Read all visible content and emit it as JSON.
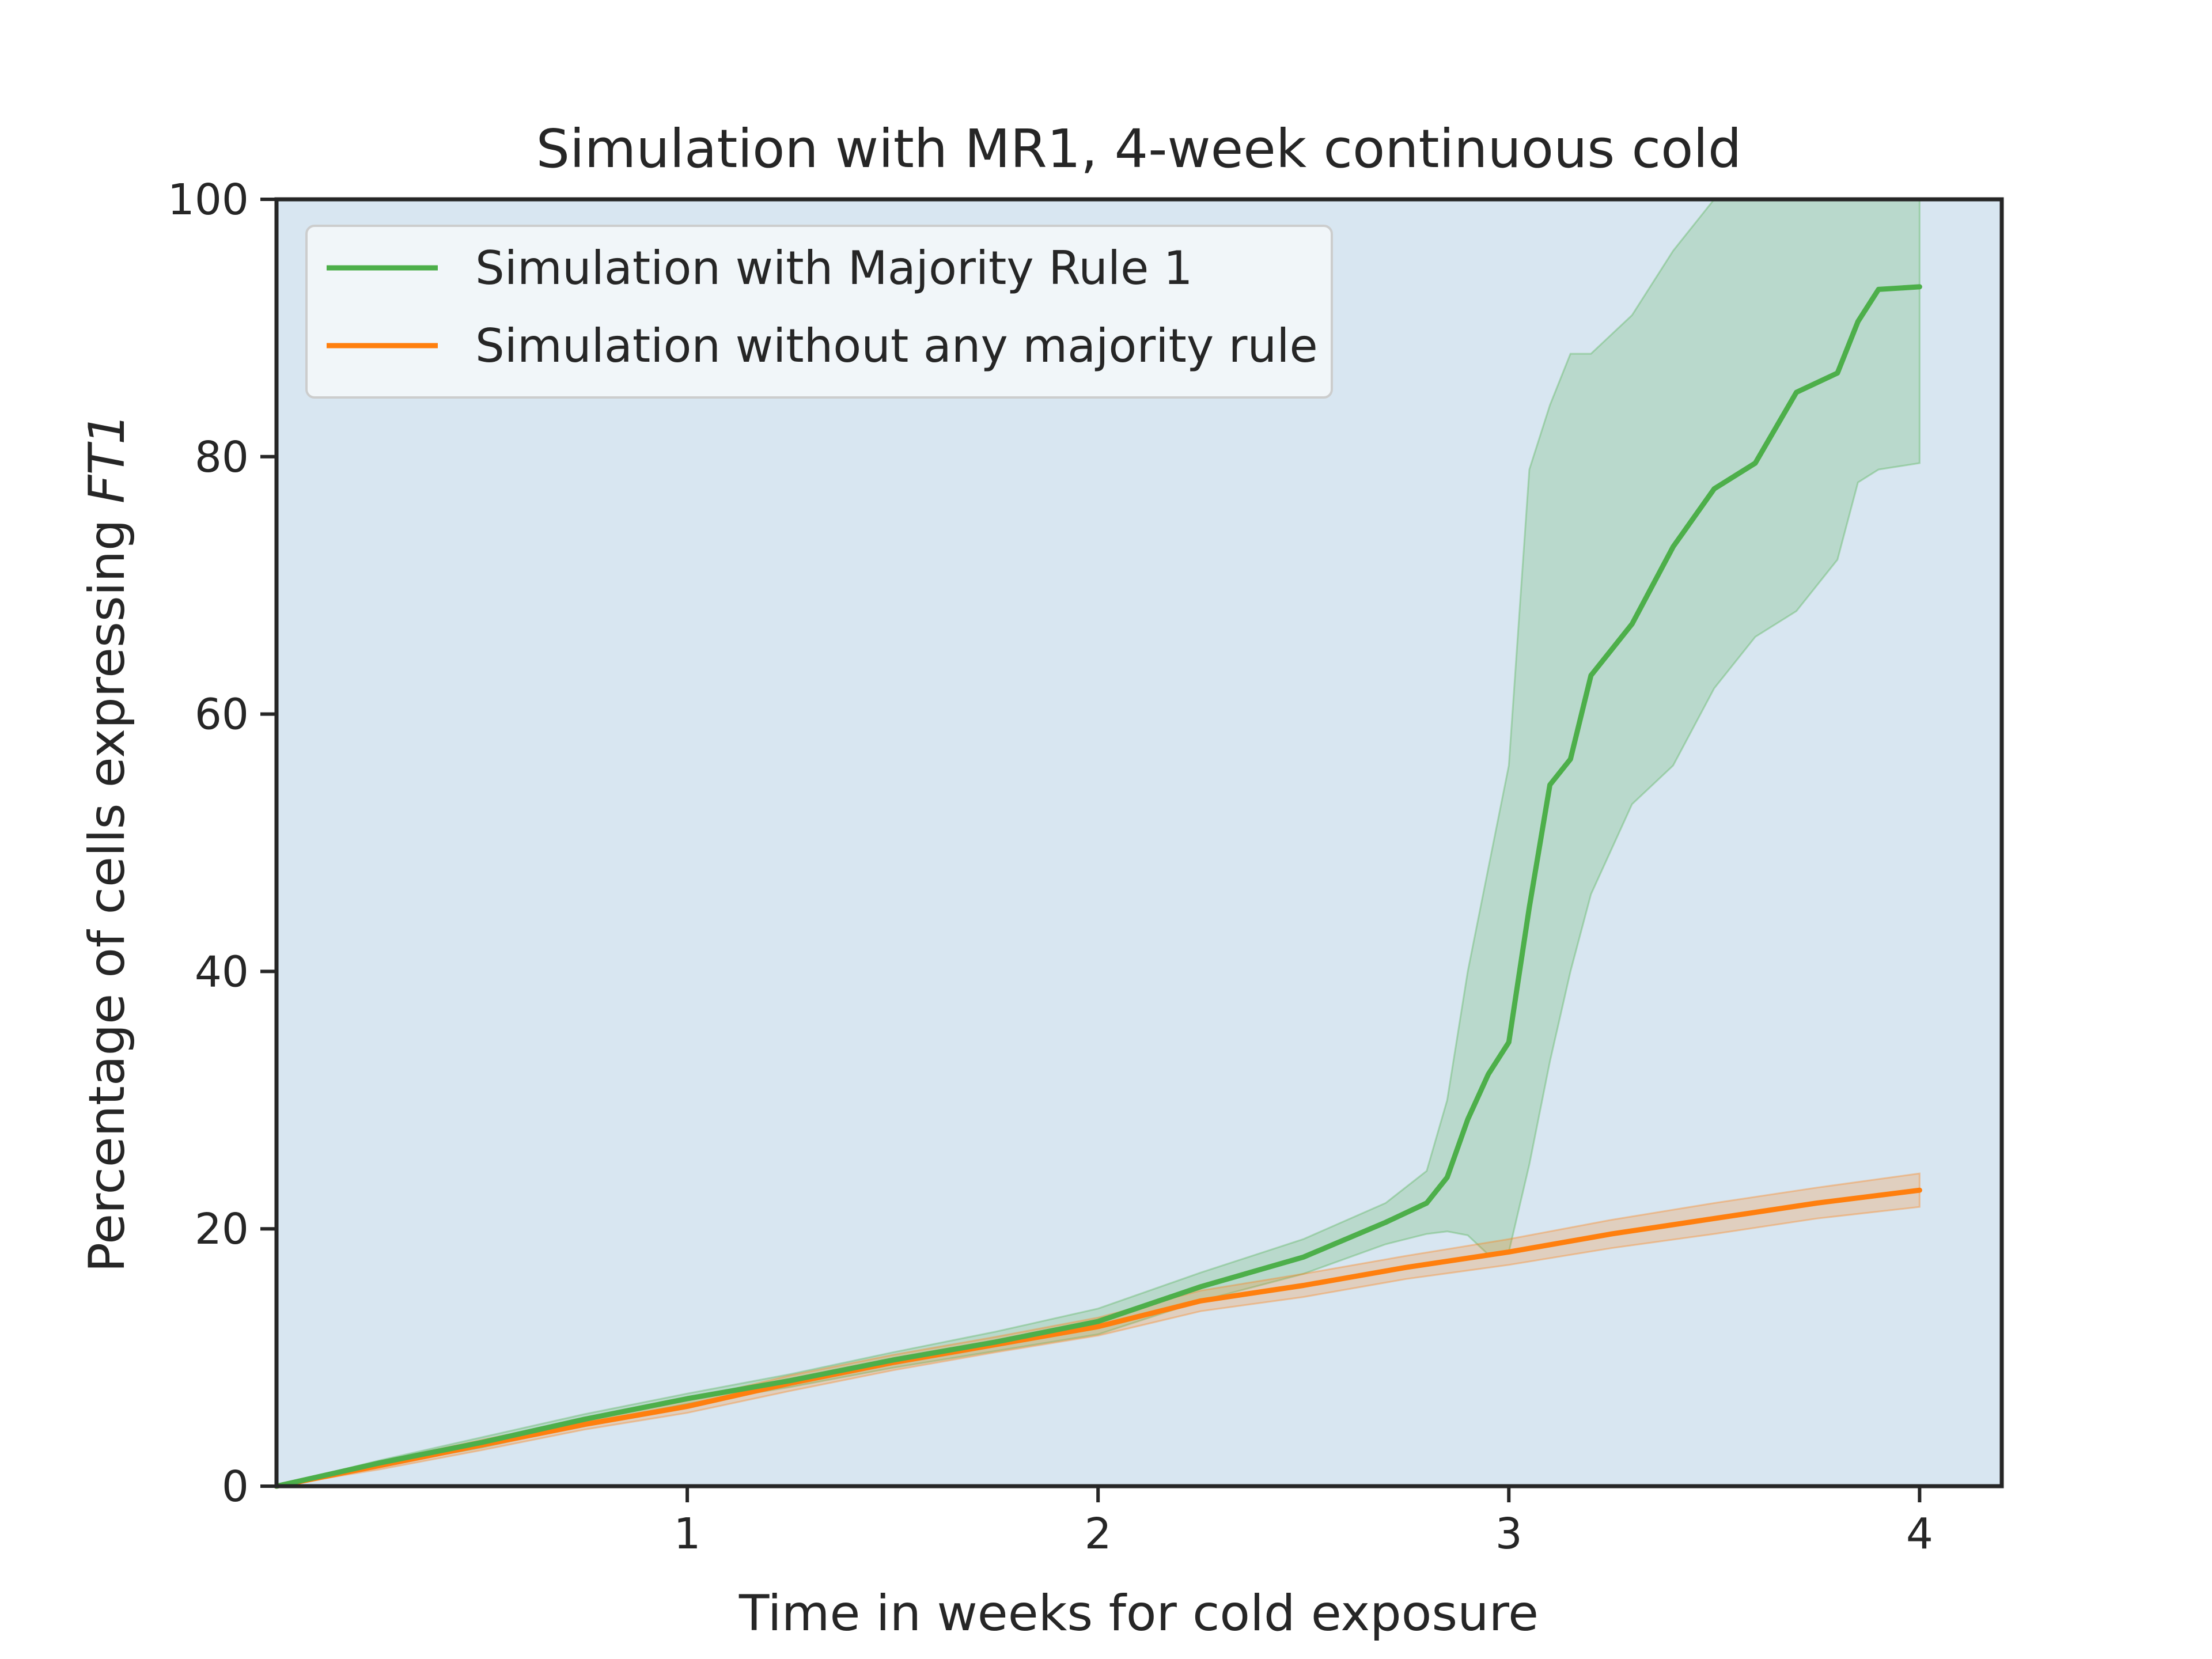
{
  "chart_data": {
    "type": "line",
    "title": "Simulation with MR1, 4-week continuous cold",
    "xlabel": "Time in weeks for cold exposure",
    "ylabel": "Percentage of cells expressing ",
    "ylabel_italic": "FT1",
    "xlim": [
      0,
      4.2
    ],
    "ylim": [
      0,
      100
    ],
    "xticks": [
      1,
      2,
      3,
      4
    ],
    "yticks": [
      0,
      20,
      40,
      60,
      80,
      100
    ],
    "background": "#d8e6f1",
    "legend_position": "upper-left",
    "series": [
      {
        "name": "Simulation with Majority Rule 1",
        "color": "#4daf4a",
        "band_color": "#4daf4a",
        "x": [
          0,
          0.25,
          0.5,
          0.75,
          1.0,
          1.25,
          1.5,
          1.75,
          2.0,
          2.25,
          2.5,
          2.7,
          2.8,
          2.85,
          2.9,
          2.95,
          3.0,
          3.05,
          3.1,
          3.15,
          3.2,
          3.3,
          3.4,
          3.5,
          3.6,
          3.7,
          3.8,
          3.85,
          3.9,
          4.0
        ],
        "y": [
          0,
          1.8,
          3.4,
          5.2,
          6.8,
          8.2,
          9.8,
          11.2,
          12.8,
          15.5,
          17.8,
          20.5,
          22.0,
          24.0,
          28.5,
          32.0,
          34.5,
          45.0,
          54.5,
          56.5,
          63.0,
          67.0,
          73.0,
          77.5,
          79.5,
          85.0,
          86.5,
          90.5,
          93.0,
          93.2
        ],
        "upper": [
          0,
          2.0,
          3.8,
          5.6,
          7.2,
          8.7,
          10.4,
          12.0,
          13.8,
          16.6,
          19.2,
          22.0,
          24.5,
          30.0,
          40.0,
          48.0,
          56.0,
          79.0,
          84.0,
          88.0,
          88.0,
          91.0,
          96.0,
          100.0,
          100.0,
          100.0,
          100.0,
          100.0,
          100.0,
          100.0
        ],
        "lower": [
          0,
          1.6,
          3.0,
          4.8,
          6.4,
          7.7,
          9.2,
          10.5,
          11.8,
          14.4,
          16.5,
          18.8,
          19.6,
          19.8,
          19.5,
          18.0,
          18.2,
          25.0,
          33.0,
          40.0,
          46.0,
          53.0,
          56.0,
          62.0,
          66.0,
          68.0,
          72.0,
          78.0,
          79.0,
          79.5
        ]
      },
      {
        "name": "Simulation without any majority rule",
        "color": "#ff7f0e",
        "band_color": "#ff7f0e",
        "x": [
          0,
          0.25,
          0.5,
          0.75,
          1.0,
          1.25,
          1.5,
          1.75,
          2.0,
          2.25,
          2.5,
          2.75,
          3.0,
          3.25,
          3.5,
          3.75,
          4.0
        ],
        "y": [
          0,
          1.6,
          3.2,
          4.8,
          6.2,
          8.0,
          9.6,
          11.0,
          12.4,
          14.4,
          15.6,
          17.0,
          18.2,
          19.6,
          20.8,
          22.0,
          23.0
        ],
        "upper": [
          0,
          1.9,
          3.6,
          5.2,
          6.7,
          8.6,
          10.2,
          11.6,
          13.1,
          15.2,
          16.5,
          17.9,
          19.2,
          20.7,
          22.0,
          23.2,
          24.3
        ],
        "lower": [
          0,
          1.3,
          2.8,
          4.4,
          5.7,
          7.4,
          9.0,
          10.4,
          11.7,
          13.6,
          14.7,
          16.1,
          17.2,
          18.5,
          19.6,
          20.8,
          21.7
        ]
      }
    ]
  }
}
